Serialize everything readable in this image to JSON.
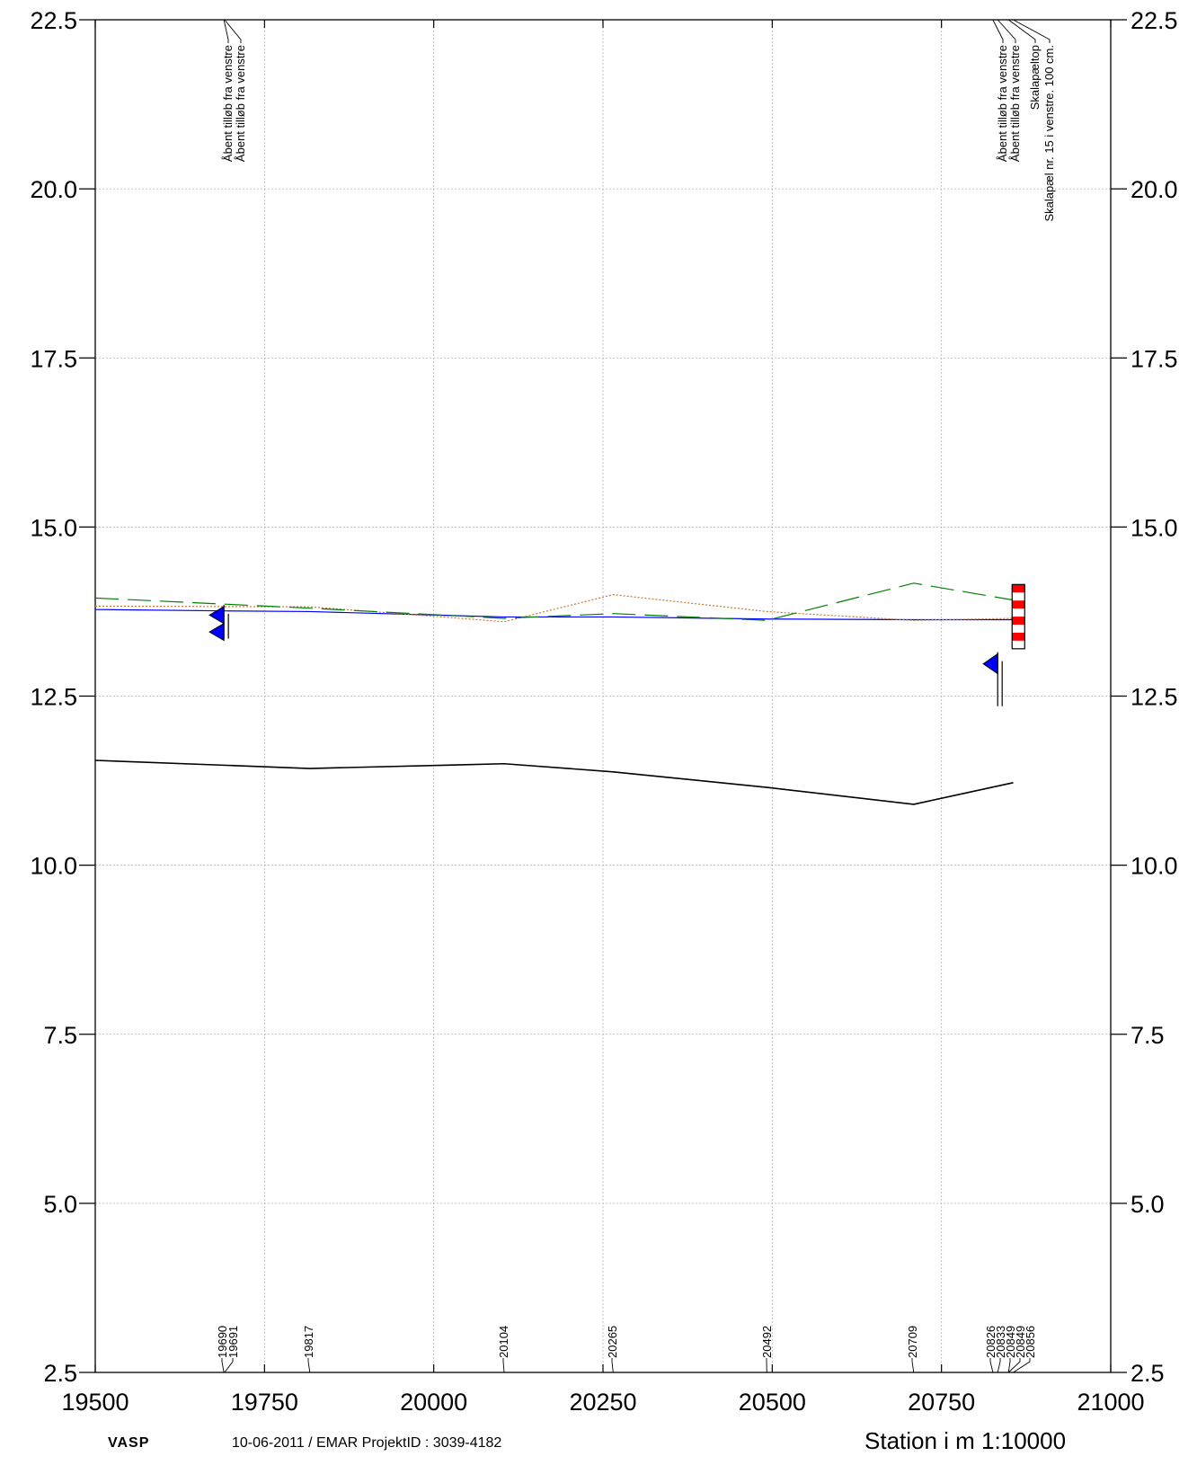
{
  "chart_data": {
    "type": "line",
    "xlim": [
      19500,
      21000
    ],
    "ylim": [
      2.5,
      22.5
    ],
    "x_ticks": [
      19500,
      19750,
      20000,
      20250,
      20500,
      20750,
      21000
    ],
    "x_tick_labels": [
      "19500",
      "19750",
      "20000",
      "20250",
      "20500",
      "20750",
      "21000"
    ],
    "y_ticks": [
      2.5,
      5.0,
      7.5,
      10.0,
      12.5,
      15.0,
      17.5,
      20.0,
      22.5
    ],
    "y_tick_labels": [
      "2.5",
      "5.0",
      "7.5",
      "10.0",
      "12.5",
      "15.0",
      "17.5",
      "20.0",
      "22.5"
    ],
    "xlabel": "Station i m  1:10000",
    "grid": true,
    "stations": [
      {
        "x": 19690,
        "label": "19690"
      },
      {
        "x": 19691,
        "label": "19691"
      },
      {
        "x": 19817,
        "label": "19817"
      },
      {
        "x": 20104,
        "label": "20104"
      },
      {
        "x": 20265,
        "label": "20265"
      },
      {
        "x": 20492,
        "label": "20492"
      },
      {
        "x": 20709,
        "label": "20709"
      },
      {
        "x": 20826,
        "label": "20826"
      },
      {
        "x": 20833,
        "label": "20833"
      },
      {
        "x": 20849,
        "label": "20849"
      },
      {
        "x": 20849,
        "label": "20849"
      },
      {
        "x": 20856,
        "label": "20856"
      }
    ],
    "series": [
      {
        "key": "bottom",
        "color": "#000000",
        "style": "solid",
        "x": [
          19500,
          19817,
          20104,
          20265,
          20492,
          20709,
          20856
        ],
        "y": [
          11.55,
          11.43,
          11.5,
          11.38,
          11.15,
          10.9,
          11.22
        ]
      },
      {
        "key": "water-blue",
        "color": "#0000ff",
        "style": "solid",
        "x": [
          19500,
          19690,
          19817,
          20104,
          20265,
          20492,
          20709,
          20856
        ],
        "y": [
          13.78,
          13.76,
          13.75,
          13.67,
          13.67,
          13.64,
          13.63,
          13.63
        ]
      },
      {
        "key": "orange-dotted",
        "color": "#c87830",
        "style": "dotted",
        "x": [
          19500,
          19817,
          20104,
          20265,
          20492,
          20709,
          20856
        ],
        "y": [
          13.83,
          13.82,
          13.6,
          14.0,
          13.75,
          13.62,
          13.65
        ]
      },
      {
        "key": "green-dashed",
        "color": "#008000",
        "style": "dashed",
        "x": [
          19500,
          19817,
          20104,
          20265,
          20492,
          20709,
          20856
        ],
        "y": [
          13.95,
          13.8,
          13.65,
          13.72,
          13.62,
          14.17,
          13.92
        ]
      }
    ],
    "annotations": [
      {
        "x": 19690,
        "text": "Åbent tilløb fra venstre"
      },
      {
        "x": 19691,
        "text": "Åbent tilløb fra venstre"
      },
      {
        "x": 20826,
        "text": "Åbent tilløb fra venstre"
      },
      {
        "x": 20833,
        "text": "Åbent tilløb fra venstre"
      },
      {
        "x": 20849,
        "text": "Skalapæltop"
      },
      {
        "x": 20856,
        "text": "Skalapæl nr. 15 i venstre. 100 cm."
      }
    ],
    "flags": [
      {
        "x": 19690,
        "y_top": 13.85,
        "y_bottom": 13.35
      },
      {
        "x": 20833,
        "y_top": 13.15,
        "y_bottom": 12.35
      }
    ],
    "gauge": {
      "x": 20849,
      "y_top": 14.15,
      "y_bottom": 13.2
    }
  },
  "footer": {
    "left": "VASP",
    "middle": "10-06-2011 / EMAR    ProjektID : 3039-4182",
    "right": "Station i m  1:10000"
  },
  "colors": {
    "grid": "#b4b4b4",
    "water": "#0000ff",
    "flag_fill": "#0000ff",
    "gauge_red": "#ff0000"
  }
}
